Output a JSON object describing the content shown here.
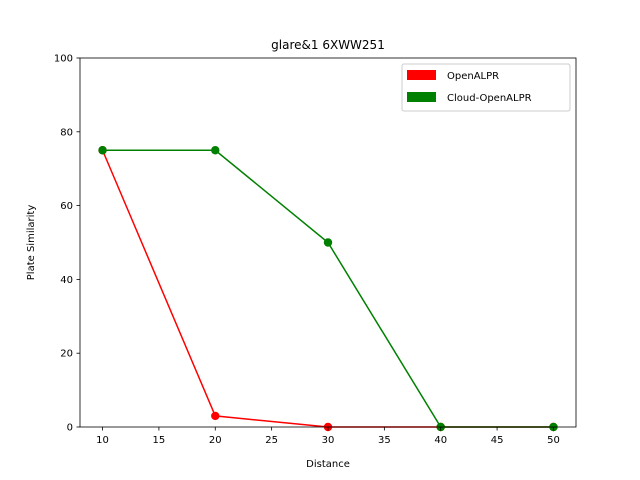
{
  "chart_data": {
    "type": "line",
    "title": "glare&1 6XWW251",
    "xlabel": "Distance",
    "ylabel": "Plate Similarity",
    "xlim": [
      8,
      52
    ],
    "ylim": [
      0,
      100
    ],
    "xticks": [
      10,
      15,
      20,
      25,
      30,
      35,
      40,
      45,
      50
    ],
    "yticks": [
      0,
      20,
      40,
      60,
      80,
      100
    ],
    "grid": false,
    "legend_position": "upper right",
    "series": [
      {
        "name": "OpenALPR",
        "color": "#ff0000",
        "x": [
          10,
          20,
          30,
          40,
          50
        ],
        "y": [
          75,
          3,
          0,
          0,
          0
        ]
      },
      {
        "name": "Cloud-OpenALPR",
        "color": "#008000",
        "x": [
          10,
          20,
          30,
          40,
          50
        ],
        "y": [
          75,
          75,
          50,
          0,
          0
        ]
      }
    ]
  }
}
